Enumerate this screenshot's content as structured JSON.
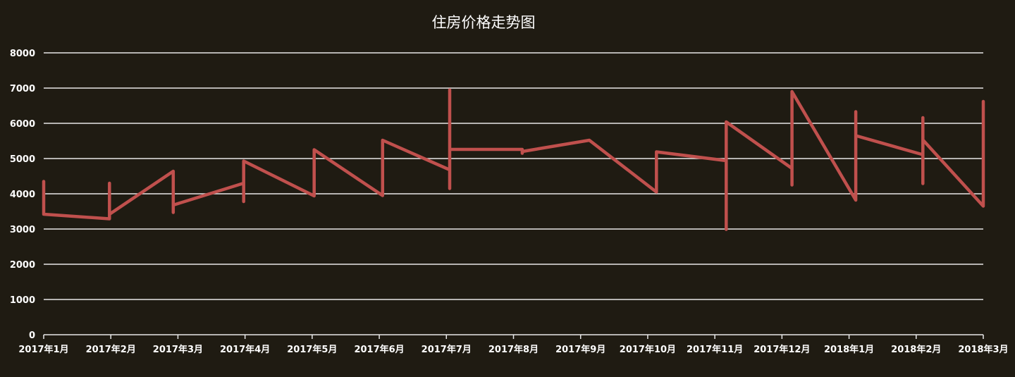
{
  "chart_data": {
    "type": "line",
    "title": "住房价格走势图",
    "xlabel": "",
    "ylabel": "",
    "ylim": [
      0,
      8000
    ],
    "yticks": [
      "0",
      "1000",
      "2000",
      "3000",
      "4000",
      "5000",
      "6000",
      "7000",
      "8000"
    ],
    "categories": [
      "2017年1月",
      "2017年2月",
      "2017年3月",
      "2017年4月",
      "2017年5月",
      "2017年6月",
      "2017年7月",
      "2017年8月",
      "2017年9月",
      "2017年10月",
      "2017年11月",
      "2017年12月",
      "2018年1月",
      "2018年2月",
      "2018年3月"
    ],
    "grid": true,
    "legend": "none",
    "series": [
      {
        "color": "#c0504d",
        "points": [
          {
            "x": 0.0,
            "y": 4350
          },
          {
            "x": 0.0,
            "y": 3420
          },
          {
            "x": 0.98,
            "y": 3290
          },
          {
            "x": 0.98,
            "y": 4300
          },
          {
            "x": 0.98,
            "y": 3420
          },
          {
            "x": 1.93,
            "y": 4640
          },
          {
            "x": 1.93,
            "y": 3470
          },
          {
            "x": 1.93,
            "y": 3680
          },
          {
            "x": 2.98,
            "y": 4300
          },
          {
            "x": 2.98,
            "y": 3780
          },
          {
            "x": 2.98,
            "y": 4930
          },
          {
            "x": 4.03,
            "y": 3940
          },
          {
            "x": 4.03,
            "y": 5250
          },
          {
            "x": 5.05,
            "y": 3950
          },
          {
            "x": 5.05,
            "y": 5520
          },
          {
            "x": 6.05,
            "y": 4680
          },
          {
            "x": 6.05,
            "y": 4150
          },
          {
            "x": 6.05,
            "y": 6950
          },
          {
            "x": 6.05,
            "y": 5260
          },
          {
            "x": 7.13,
            "y": 5260
          },
          {
            "x": 7.13,
            "y": 5150
          },
          {
            "x": 7.13,
            "y": 5200
          },
          {
            "x": 8.13,
            "y": 5520
          },
          {
            "x": 9.13,
            "y": 4050
          },
          {
            "x": 9.13,
            "y": 5190
          },
          {
            "x": 10.17,
            "y": 4940
          },
          {
            "x": 10.17,
            "y": 2990
          },
          {
            "x": 10.17,
            "y": 6040
          },
          {
            "x": 11.15,
            "y": 4720
          },
          {
            "x": 11.15,
            "y": 4250
          },
          {
            "x": 11.15,
            "y": 6900
          },
          {
            "x": 12.1,
            "y": 3820
          },
          {
            "x": 12.1,
            "y": 6330
          },
          {
            "x": 12.1,
            "y": 5650
          },
          {
            "x": 13.1,
            "y": 5110
          },
          {
            "x": 13.1,
            "y": 4290
          },
          {
            "x": 13.1,
            "y": 6160
          },
          {
            "x": 13.1,
            "y": 5530
          },
          {
            "x": 14.0,
            "y": 3650
          },
          {
            "x": 14.0,
            "y": 6620
          }
        ]
      }
    ]
  }
}
